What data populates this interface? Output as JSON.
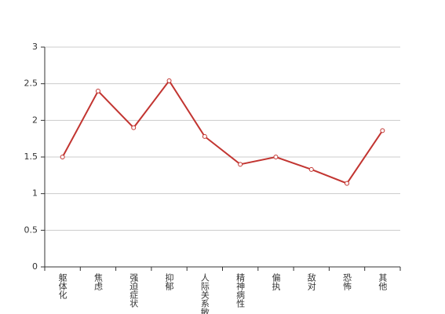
{
  "chart_data": {
    "type": "line",
    "categories": [
      "躯体化",
      "焦虑",
      "强迫症状",
      "抑郁",
      "人际关系敏感",
      "精神病性",
      "偏执",
      "敌对",
      "恐怖",
      "其他"
    ],
    "series": [
      {
        "color": "#c23531",
        "values": [
          1.5,
          2.4,
          1.9,
          2.54,
          1.78,
          1.4,
          1.5,
          1.33,
          1.14,
          1.86
        ]
      }
    ],
    "ylim": [
      0,
      3
    ],
    "yticks": [
      0,
      0.5,
      1,
      1.5,
      2,
      2.5,
      3
    ],
    "grid": true
  }
}
